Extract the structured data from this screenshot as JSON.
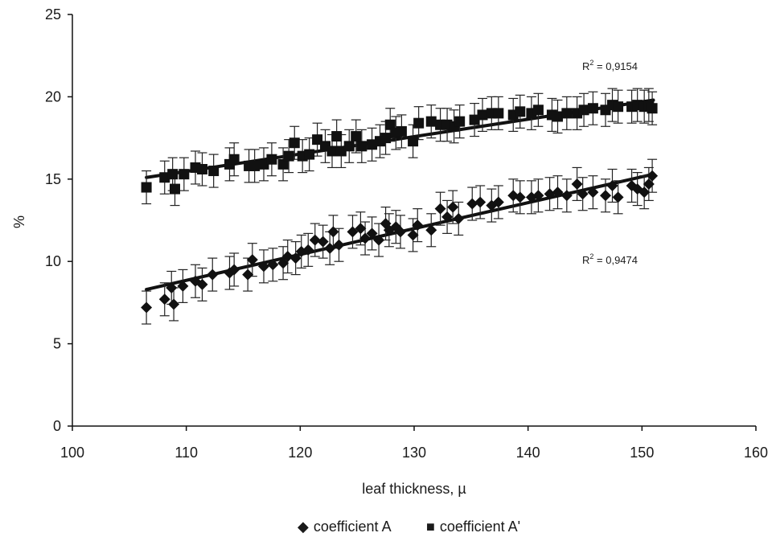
{
  "chart_data": {
    "type": "scatter",
    "title": "",
    "xlabel": "leaf thickness, µ",
    "ylabel": "%",
    "xlim": [
      100,
      160
    ],
    "ylim": [
      0,
      25
    ],
    "x_ticks": [
      "100",
      "110",
      "120",
      "130",
      "140",
      "150",
      "160"
    ],
    "y_ticks": [
      "0",
      "5",
      "10",
      "15",
      "20",
      "25"
    ],
    "grid": false,
    "legend_position": "bottom",
    "error_bar_half_width": 1,
    "series": [
      {
        "name": "coefficient A",
        "marker": "diamond",
        "color": "#111111",
        "r2_label": "R",
        "r2_sup": "2",
        "r2_value": " = 0,9474",
        "trendline": {
          "x": [
            106.5,
            151
          ],
          "y": [
            8.3,
            15.3
          ]
        },
        "points": [
          {
            "x": 106.5,
            "y": 7.2
          },
          {
            "x": 108.1,
            "y": 7.7
          },
          {
            "x": 108.7,
            "y": 8.4
          },
          {
            "x": 108.9,
            "y": 7.4
          },
          {
            "x": 109.7,
            "y": 8.5
          },
          {
            "x": 110.8,
            "y": 8.8
          },
          {
            "x": 111.4,
            "y": 8.6
          },
          {
            "x": 112.3,
            "y": 9.2
          },
          {
            "x": 113.8,
            "y": 9.3
          },
          {
            "x": 114.2,
            "y": 9.5
          },
          {
            "x": 115.4,
            "y": 9.2
          },
          {
            "x": 115.8,
            "y": 10.1
          },
          {
            "x": 116.8,
            "y": 9.7
          },
          {
            "x": 117.6,
            "y": 9.8
          },
          {
            "x": 118.5,
            "y": 9.9
          },
          {
            "x": 118.9,
            "y": 10.3
          },
          {
            "x": 119.6,
            "y": 10.2
          },
          {
            "x": 120.1,
            "y": 10.6
          },
          {
            "x": 120.7,
            "y": 10.7
          },
          {
            "x": 121.3,
            "y": 11.3
          },
          {
            "x": 122.0,
            "y": 11.2
          },
          {
            "x": 122.6,
            "y": 10.8
          },
          {
            "x": 122.9,
            "y": 11.8
          },
          {
            "x": 123.4,
            "y": 11.0
          },
          {
            "x": 124.6,
            "y": 11.8
          },
          {
            "x": 125.3,
            "y": 12.0
          },
          {
            "x": 125.7,
            "y": 11.4
          },
          {
            "x": 126.3,
            "y": 11.7
          },
          {
            "x": 126.9,
            "y": 11.3
          },
          {
            "x": 127.5,
            "y": 12.3
          },
          {
            "x": 127.8,
            "y": 11.9
          },
          {
            "x": 128.4,
            "y": 12.1
          },
          {
            "x": 128.8,
            "y": 11.8
          },
          {
            "x": 129.9,
            "y": 11.6
          },
          {
            "x": 130.3,
            "y": 12.2
          },
          {
            "x": 131.5,
            "y": 11.9
          },
          {
            "x": 132.3,
            "y": 13.2
          },
          {
            "x": 132.9,
            "y": 12.7
          },
          {
            "x": 133.4,
            "y": 13.3
          },
          {
            "x": 133.9,
            "y": 12.6
          },
          {
            "x": 135.1,
            "y": 13.5
          },
          {
            "x": 135.8,
            "y": 13.6
          },
          {
            "x": 136.8,
            "y": 13.4
          },
          {
            "x": 137.4,
            "y": 13.6
          },
          {
            "x": 138.7,
            "y": 14.0
          },
          {
            "x": 139.3,
            "y": 13.9
          },
          {
            "x": 140.3,
            "y": 13.9
          },
          {
            "x": 140.9,
            "y": 14.0
          },
          {
            "x": 141.9,
            "y": 14.1
          },
          {
            "x": 142.6,
            "y": 14.2
          },
          {
            "x": 143.4,
            "y": 14.0
          },
          {
            "x": 144.3,
            "y": 14.7
          },
          {
            "x": 144.8,
            "y": 14.1
          },
          {
            "x": 145.7,
            "y": 14.2
          },
          {
            "x": 146.8,
            "y": 14.0
          },
          {
            "x": 147.4,
            "y": 14.6
          },
          {
            "x": 147.9,
            "y": 13.9
          },
          {
            "x": 149.1,
            "y": 14.6
          },
          {
            "x": 149.6,
            "y": 14.4
          },
          {
            "x": 150.2,
            "y": 14.2
          },
          {
            "x": 150.6,
            "y": 14.7
          },
          {
            "x": 150.9,
            "y": 15.2
          }
        ]
      },
      {
        "name": "coefficient A'",
        "marker": "square",
        "color": "#111111",
        "r2_label": "R",
        "r2_sup": "2",
        "r2_value": " = 0,9154",
        "trendline": {
          "x": [
            106.5,
            151
          ],
          "y": [
            15.1,
            19.8
          ]
        },
        "points": [
          {
            "x": 106.5,
            "y": 14.5
          },
          {
            "x": 108.1,
            "y": 15.1
          },
          {
            "x": 108.8,
            "y": 15.3
          },
          {
            "x": 109.0,
            "y": 14.4
          },
          {
            "x": 109.8,
            "y": 15.3
          },
          {
            "x": 110.8,
            "y": 15.7
          },
          {
            "x": 111.4,
            "y": 15.6
          },
          {
            "x": 112.4,
            "y": 15.5
          },
          {
            "x": 113.8,
            "y": 15.9
          },
          {
            "x": 114.2,
            "y": 16.2
          },
          {
            "x": 115.5,
            "y": 15.8
          },
          {
            "x": 116.0,
            "y": 15.8
          },
          {
            "x": 116.8,
            "y": 15.9
          },
          {
            "x": 117.5,
            "y": 16.2
          },
          {
            "x": 118.5,
            "y": 15.9
          },
          {
            "x": 119.0,
            "y": 16.4
          },
          {
            "x": 119.5,
            "y": 17.2
          },
          {
            "x": 120.2,
            "y": 16.4
          },
          {
            "x": 120.8,
            "y": 16.5
          },
          {
            "x": 121.5,
            "y": 17.4
          },
          {
            "x": 122.2,
            "y": 17.0
          },
          {
            "x": 122.8,
            "y": 16.7
          },
          {
            "x": 123.2,
            "y": 17.6
          },
          {
            "x": 123.6,
            "y": 16.7
          },
          {
            "x": 124.3,
            "y": 17.0
          },
          {
            "x": 124.9,
            "y": 17.6
          },
          {
            "x": 125.4,
            "y": 17.0
          },
          {
            "x": 126.3,
            "y": 17.1
          },
          {
            "x": 127.0,
            "y": 17.3
          },
          {
            "x": 127.5,
            "y": 17.5
          },
          {
            "x": 127.9,
            "y": 18.3
          },
          {
            "x": 128.4,
            "y": 17.8
          },
          {
            "x": 128.9,
            "y": 17.9
          },
          {
            "x": 129.9,
            "y": 17.3
          },
          {
            "x": 130.4,
            "y": 18.4
          },
          {
            "x": 131.5,
            "y": 18.5
          },
          {
            "x": 132.3,
            "y": 18.3
          },
          {
            "x": 132.9,
            "y": 18.3
          },
          {
            "x": 133.5,
            "y": 18.2
          },
          {
            "x": 134.0,
            "y": 18.5
          },
          {
            "x": 135.3,
            "y": 18.6
          },
          {
            "x": 136.0,
            "y": 18.9
          },
          {
            "x": 136.8,
            "y": 19.0
          },
          {
            "x": 137.4,
            "y": 19.0
          },
          {
            "x": 138.7,
            "y": 18.9
          },
          {
            "x": 139.3,
            "y": 19.1
          },
          {
            "x": 140.3,
            "y": 19.0
          },
          {
            "x": 140.9,
            "y": 19.2
          },
          {
            "x": 142.1,
            "y": 18.9
          },
          {
            "x": 142.6,
            "y": 18.8
          },
          {
            "x": 143.4,
            "y": 19.0
          },
          {
            "x": 144.3,
            "y": 19.0
          },
          {
            "x": 144.9,
            "y": 19.2
          },
          {
            "x": 145.7,
            "y": 19.3
          },
          {
            "x": 146.8,
            "y": 19.2
          },
          {
            "x": 147.4,
            "y": 19.5
          },
          {
            "x": 147.9,
            "y": 19.4
          },
          {
            "x": 149.1,
            "y": 19.4
          },
          {
            "x": 149.6,
            "y": 19.5
          },
          {
            "x": 150.2,
            "y": 19.4
          },
          {
            "x": 150.6,
            "y": 19.5
          },
          {
            "x": 150.9,
            "y": 19.3
          }
        ]
      }
    ],
    "legend": [
      {
        "symbol": "◆",
        "label": "coefficient A"
      },
      {
        "symbol": "■",
        "label": "coefficient A'"
      }
    ]
  }
}
